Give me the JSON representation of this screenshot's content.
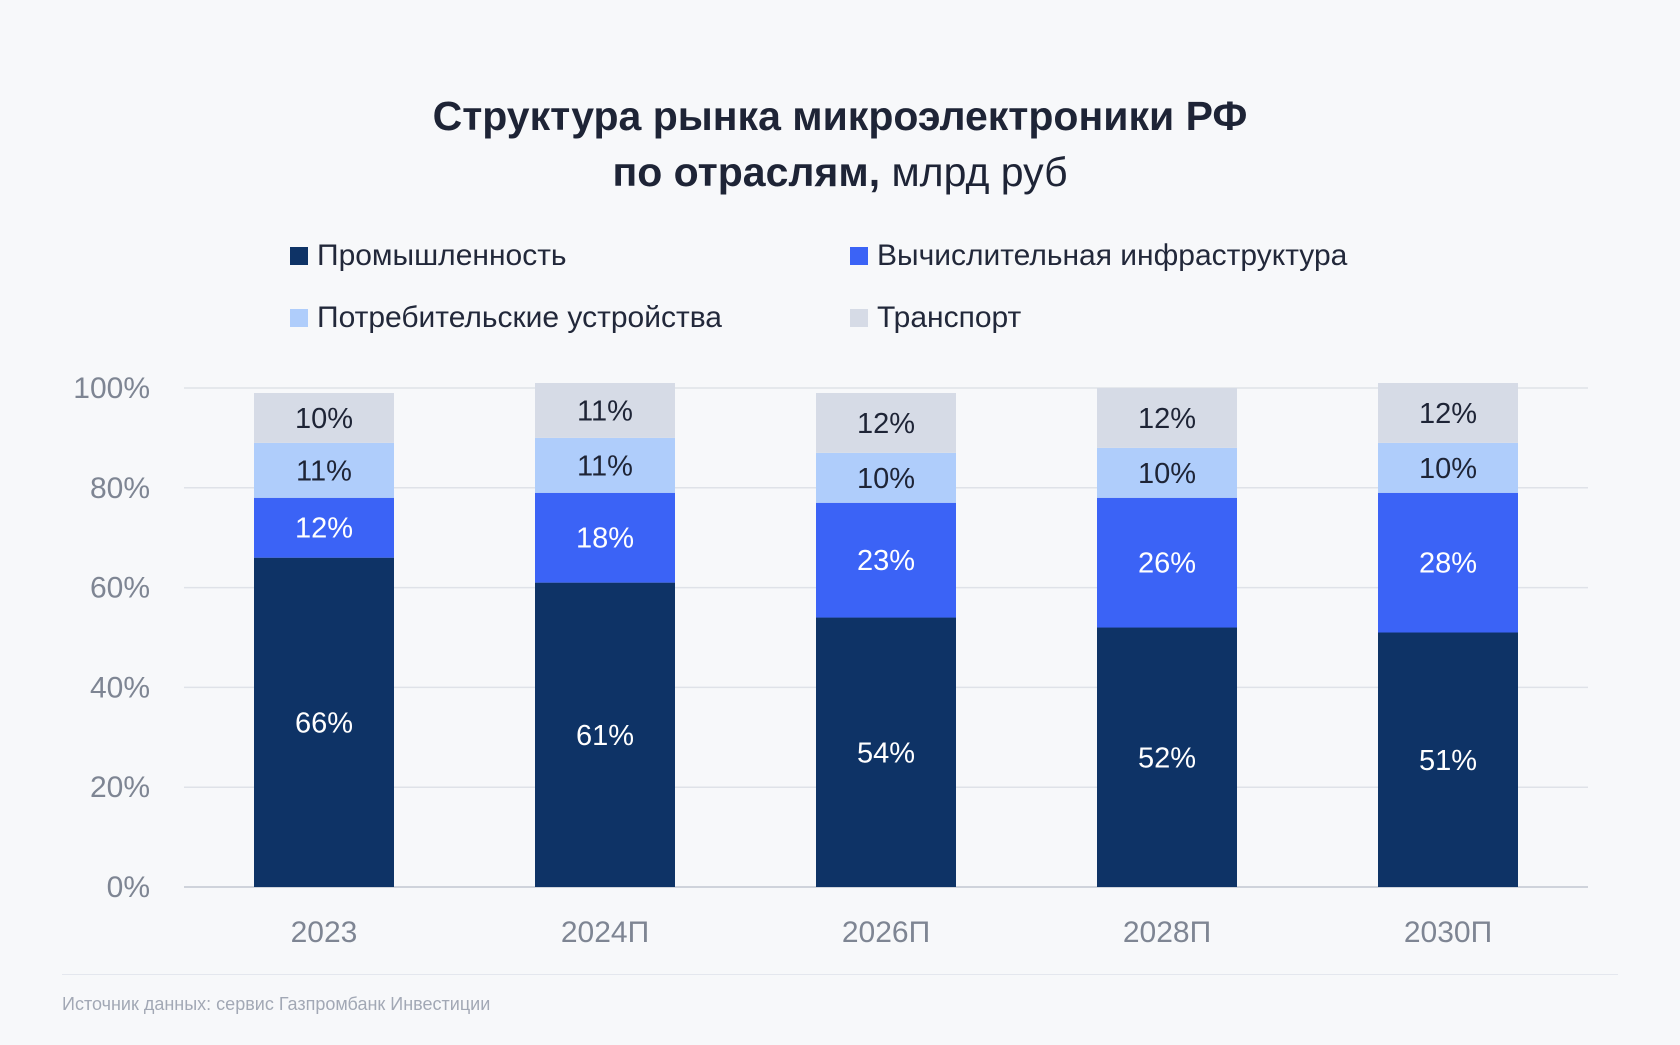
{
  "title": {
    "line1": "Структура рынка микроэлектроники РФ",
    "line2_bold": "по отраслям,",
    "line2_light": " млрд руб"
  },
  "legend": [
    {
      "label": "Промышленность",
      "color": "#0e3366"
    },
    {
      "label": "Вычислительная инфраструктура",
      "color": "#3b63f6"
    },
    {
      "label": "Потребительские устройства",
      "color": "#afcdfb"
    },
    {
      "label": "Транспорт",
      "color": "#d6dbe6"
    }
  ],
  "chart_data": {
    "type": "bar",
    "stacked": true,
    "categories": [
      "2023",
      "2024П",
      "2026П",
      "2028П",
      "2030П"
    ],
    "series": [
      {
        "name": "Промышленность",
        "color": "#0e3366",
        "values": [
          66,
          61,
          54,
          52,
          51
        ],
        "labels": [
          "66%",
          "61%",
          "54%",
          "52%",
          "51%"
        ]
      },
      {
        "name": "Вычислительная инфраструктура",
        "color": "#3b63f6",
        "values": [
          12,
          18,
          23,
          26,
          28
        ],
        "labels": [
          "12%",
          "18%",
          "23%",
          "26%",
          "28%"
        ]
      },
      {
        "name": "Потребительские устройства",
        "color": "#afcdfb",
        "values": [
          11,
          11,
          10,
          10,
          10
        ],
        "labels": [
          "11%",
          "11%",
          "10%",
          "10%",
          "10%"
        ]
      },
      {
        "name": "Транспорт",
        "color": "#d6dbe6",
        "values": [
          10,
          11,
          12,
          12,
          12
        ],
        "labels": [
          "10%",
          "11%",
          "12%",
          "12%",
          "12%"
        ]
      }
    ],
    "ylim": [
      0,
      100
    ],
    "yticks": [
      "0%",
      "20%",
      "40%",
      "60%",
      "80%",
      "100%"
    ],
    "grid": true,
    "legend_position": "top"
  },
  "source": "Источник данных: сервис Газпромбанк Инвестиции"
}
